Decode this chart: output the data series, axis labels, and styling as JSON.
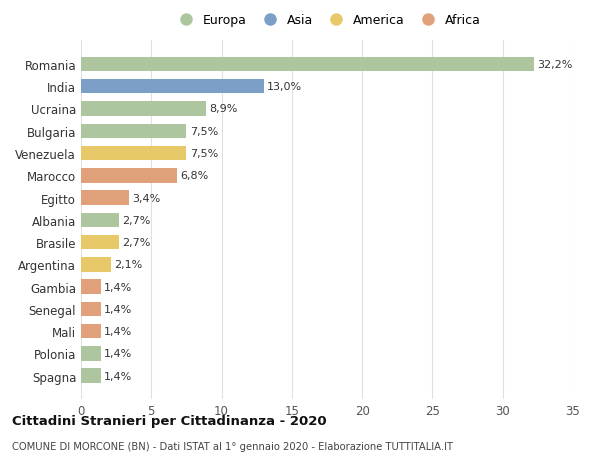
{
  "categories": [
    "Romania",
    "India",
    "Ucraina",
    "Bulgaria",
    "Venezuela",
    "Marocco",
    "Egitto",
    "Albania",
    "Brasile",
    "Argentina",
    "Gambia",
    "Senegal",
    "Mali",
    "Polonia",
    "Spagna"
  ],
  "values": [
    32.2,
    13.0,
    8.9,
    7.5,
    7.5,
    6.8,
    3.4,
    2.7,
    2.7,
    2.1,
    1.4,
    1.4,
    1.4,
    1.4,
    1.4
  ],
  "labels": [
    "32,2%",
    "13,0%",
    "8,9%",
    "7,5%",
    "7,5%",
    "6,8%",
    "3,4%",
    "2,7%",
    "2,7%",
    "2,1%",
    "1,4%",
    "1,4%",
    "1,4%",
    "1,4%",
    "1,4%"
  ],
  "continents": [
    "Europa",
    "Asia",
    "Europa",
    "Europa",
    "America",
    "Africa",
    "Africa",
    "Europa",
    "America",
    "America",
    "Africa",
    "Africa",
    "Africa",
    "Europa",
    "Europa"
  ],
  "continent_colors": {
    "Europa": "#aec6a0",
    "Asia": "#7b9fc7",
    "America": "#e8c96a",
    "Africa": "#dfa07a"
  },
  "legend_order": [
    "Europa",
    "Asia",
    "America",
    "Africa"
  ],
  "title": "Cittadini Stranieri per Cittadinanza - 2020",
  "subtitle": "COMUNE DI MORCONE (BN) - Dati ISTAT al 1° gennaio 2020 - Elaborazione TUTTITALIA.IT",
  "xlim": [
    0,
    35
  ],
  "xticks": [
    0,
    5,
    10,
    15,
    20,
    25,
    30,
    35
  ],
  "background_color": "#ffffff",
  "grid_color": "#e0e0e0"
}
